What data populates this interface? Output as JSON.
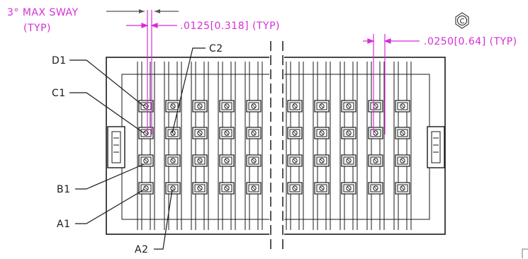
{
  "labels": {
    "sway": "3° MAX SWAY",
    "sway_typ": "(TYP)",
    "dim_left": ".0125[0.318] (TYP)",
    "dim_right": ".0250[0.64] (TYP)",
    "d1": "D1",
    "c1": "C1",
    "b1": "B1",
    "a1": "A1",
    "c2": "C2",
    "a2": "A2",
    "symbol": "C"
  },
  "colors": {
    "outline": "#1a1a1a",
    "dimension": "#d42fd4"
  }
}
